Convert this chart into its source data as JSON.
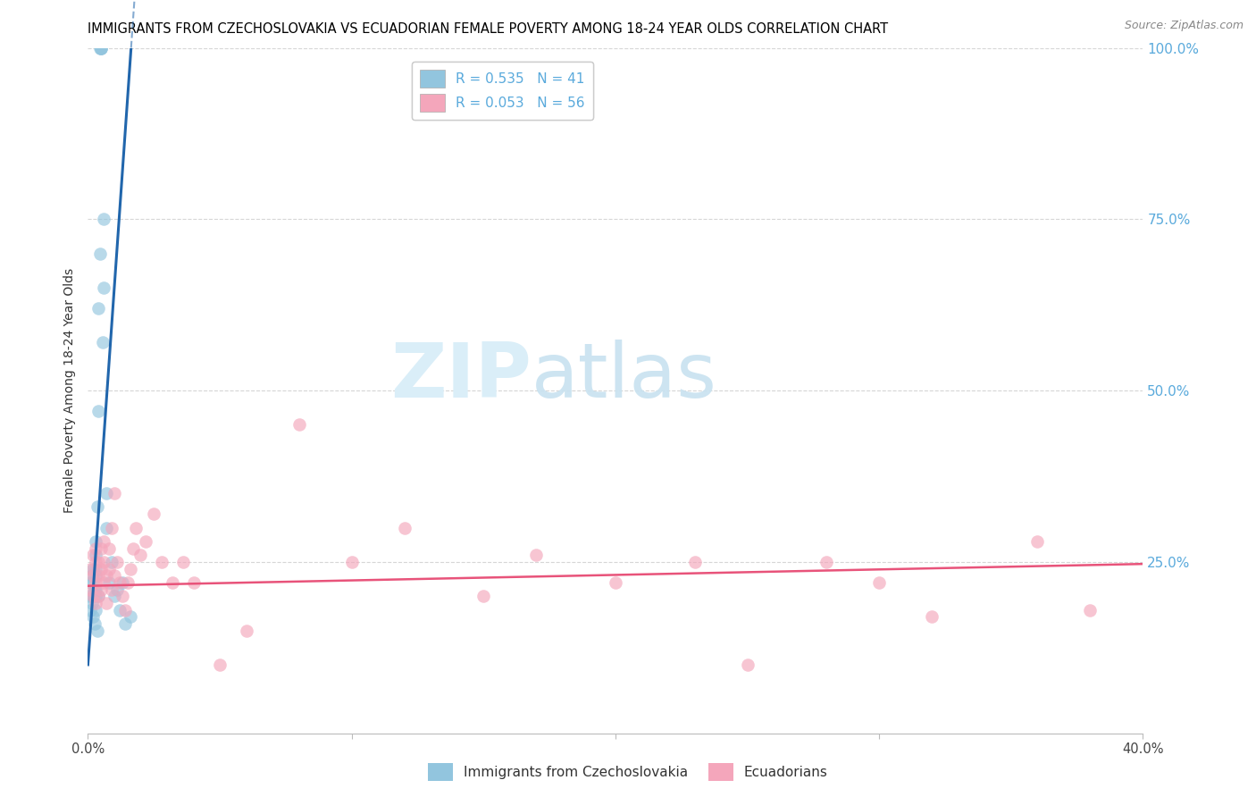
{
  "title": "IMMIGRANTS FROM CZECHOSLOVAKIA VS ECUADORIAN FEMALE POVERTY AMONG 18-24 YEAR OLDS CORRELATION CHART",
  "source": "Source: ZipAtlas.com",
  "ylabel": "Female Poverty Among 18-24 Year Olds",
  "xlim": [
    0.0,
    0.4
  ],
  "ylim": [
    0.0,
    1.0
  ],
  "xticks": [
    0.0,
    0.1,
    0.2,
    0.3,
    0.4
  ],
  "xticklabels": [
    "0.0%",
    "",
    "",
    "",
    "40.0%"
  ],
  "yticks_right": [
    0.25,
    0.5,
    0.75,
    1.0
  ],
  "yticklabels_right": [
    "25.0%",
    "50.0%",
    "75.0%",
    "100.0%"
  ],
  "legend1_label": "R = 0.535   N = 41",
  "legend2_label": "R = 0.053   N = 56",
  "blue_color": "#92c5de",
  "pink_color": "#f4a6bb",
  "blue_line_color": "#2166ac",
  "pink_line_color": "#e8537a",
  "grid_color": "#cccccc",
  "right_tick_color": "#5aaadc",
  "blue_scatter_x": [
    0.0005,
    0.001,
    0.001,
    0.0015,
    0.0015,
    0.002,
    0.002,
    0.002,
    0.002,
    0.0025,
    0.0025,
    0.003,
    0.003,
    0.003,
    0.003,
    0.003,
    0.003,
    0.003,
    0.0035,
    0.0035,
    0.004,
    0.004,
    0.004,
    0.0045,
    0.0045,
    0.005,
    0.005,
    0.005,
    0.0055,
    0.006,
    0.006,
    0.007,
    0.007,
    0.008,
    0.009,
    0.01,
    0.011,
    0.012,
    0.013,
    0.014,
    0.016
  ],
  "blue_scatter_y": [
    0.2,
    0.18,
    0.22,
    0.19,
    0.23,
    0.17,
    0.2,
    0.22,
    0.24,
    0.16,
    0.21,
    0.18,
    0.2,
    0.21,
    0.23,
    0.24,
    0.26,
    0.28,
    0.15,
    0.33,
    0.2,
    0.47,
    0.62,
    0.7,
    1.0,
    1.0,
    1.0,
    1.0,
    0.57,
    0.65,
    0.75,
    0.3,
    0.35,
    0.22,
    0.25,
    0.2,
    0.21,
    0.18,
    0.22,
    0.16,
    0.17
  ],
  "pink_scatter_x": [
    0.001,
    0.001,
    0.002,
    0.002,
    0.002,
    0.003,
    0.003,
    0.003,
    0.003,
    0.004,
    0.004,
    0.004,
    0.005,
    0.005,
    0.005,
    0.006,
    0.006,
    0.006,
    0.007,
    0.007,
    0.008,
    0.008,
    0.009,
    0.009,
    0.01,
    0.01,
    0.011,
    0.012,
    0.013,
    0.014,
    0.015,
    0.016,
    0.017,
    0.018,
    0.02,
    0.022,
    0.025,
    0.028,
    0.032,
    0.036,
    0.04,
    0.05,
    0.06,
    0.08,
    0.1,
    0.12,
    0.15,
    0.17,
    0.2,
    0.23,
    0.25,
    0.28,
    0.3,
    0.32,
    0.36,
    0.38
  ],
  "pink_scatter_y": [
    0.21,
    0.24,
    0.2,
    0.23,
    0.26,
    0.19,
    0.22,
    0.25,
    0.27,
    0.2,
    0.23,
    0.25,
    0.21,
    0.24,
    0.27,
    0.22,
    0.25,
    0.28,
    0.19,
    0.23,
    0.24,
    0.27,
    0.21,
    0.3,
    0.23,
    0.35,
    0.25,
    0.22,
    0.2,
    0.18,
    0.22,
    0.24,
    0.27,
    0.3,
    0.26,
    0.28,
    0.32,
    0.25,
    0.22,
    0.25,
    0.22,
    0.1,
    0.15,
    0.45,
    0.25,
    0.3,
    0.2,
    0.26,
    0.22,
    0.25,
    0.1,
    0.25,
    0.22,
    0.17,
    0.28,
    0.18
  ],
  "blue_slope": 55.0,
  "blue_intercept": 0.1,
  "pink_slope": 0.08,
  "pink_intercept": 0.215
}
